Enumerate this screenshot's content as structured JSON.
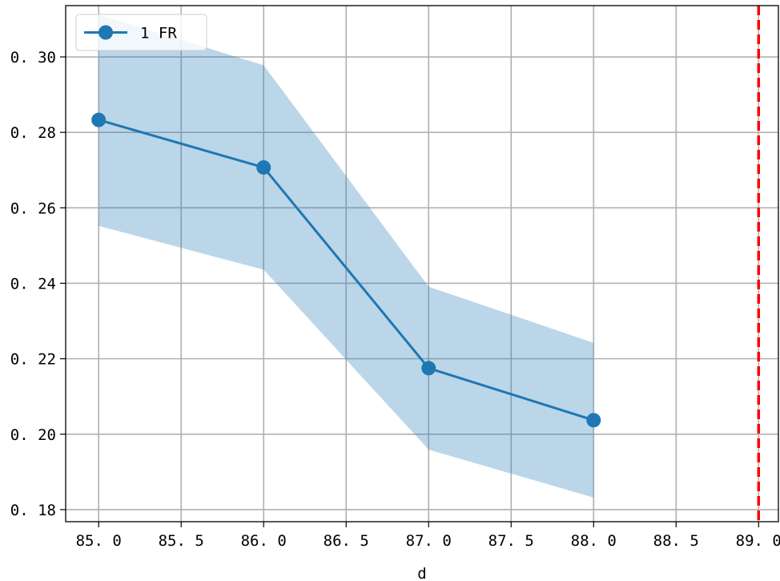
{
  "chart_data": {
    "type": "line",
    "title": "",
    "xlabel": "d",
    "ylabel": "",
    "xlim": [
      84.8,
      89.12
    ],
    "ylim": [
      0.1768,
      0.3136
    ],
    "x_ticks": [
      85.0,
      85.5,
      86.0,
      86.5,
      87.0,
      87.5,
      88.0,
      88.5,
      89.0
    ],
    "x_tick_labels": [
      "85. 0",
      "85. 5",
      "86. 0",
      "86. 5",
      "87. 0",
      "87. 5",
      "88. 0",
      "88. 5",
      "89. 0"
    ],
    "y_ticks": [
      0.18,
      0.2,
      0.22,
      0.24,
      0.26,
      0.28,
      0.3
    ],
    "y_tick_labels": [
      "0. 18",
      "0. 20",
      "0. 22",
      "0. 24",
      "0. 26",
      "0. 28",
      "0. 30"
    ],
    "grid": true,
    "legend_position": "top-left",
    "series": [
      {
        "name": "1 FR",
        "color": "#1f77b4",
        "marker": "circle",
        "x": [
          85.0,
          86.0,
          87.0,
          88.0
        ],
        "y": [
          0.2833,
          0.2707,
          0.2175,
          0.2037
        ],
        "band_lower": [
          0.2552,
          0.2436,
          0.1959,
          0.1832
        ],
        "band_upper": [
          0.3112,
          0.2978,
          0.2391,
          0.2242
        ],
        "band_color": "#1f77b4"
      }
    ],
    "vlines": [
      {
        "x": 89.0,
        "color": "#ff0000",
        "style": "dashed"
      }
    ]
  }
}
